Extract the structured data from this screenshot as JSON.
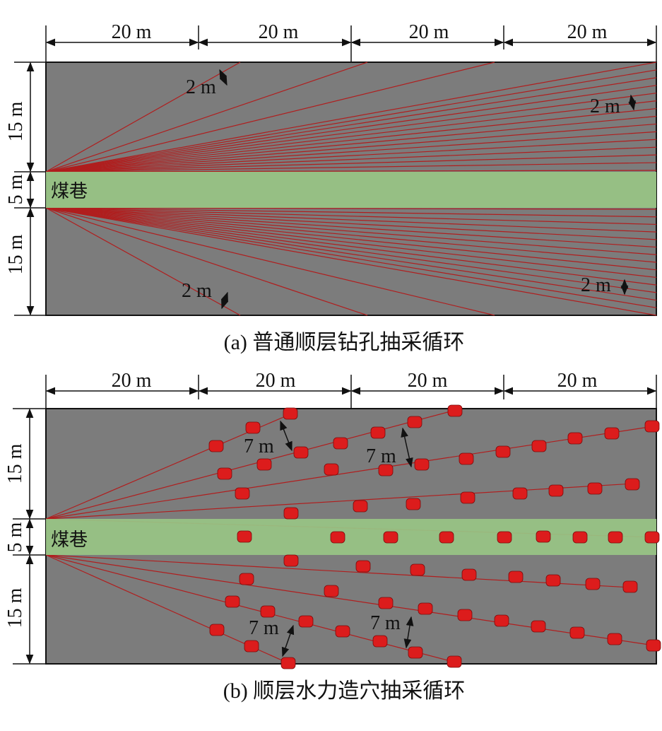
{
  "colors": {
    "seam": "#7c7c7c",
    "roadway": "#98c484",
    "borehole": "#b01e1e",
    "cavity": "#dc1c1c",
    "ink": "#111111"
  },
  "panel_a": {
    "caption": "(a) 普通顺层钻孔抽采循环",
    "width_labels": [
      "20 m",
      "20 m",
      "20 m",
      "20 m"
    ],
    "height_labels": [
      "15 m",
      "5 m",
      "15 m"
    ],
    "roadway_label": "煤巷",
    "spacing_labels": [
      "2 m",
      "2 m",
      "2 m",
      "2 m"
    ],
    "boreholes_per_fan": 15
  },
  "panel_b": {
    "caption": "(b) 顺层水力造穴抽采循环",
    "width_labels": [
      "20 m",
      "20 m",
      "20 m",
      "20 m"
    ],
    "height_labels": [
      "15 m",
      "5 m",
      "15 m"
    ],
    "roadway_label": "煤巷",
    "spacing_labels": [
      "7 m",
      "7 m",
      "7 m",
      "7 m"
    ],
    "boreholes_per_fan": 5
  }
}
